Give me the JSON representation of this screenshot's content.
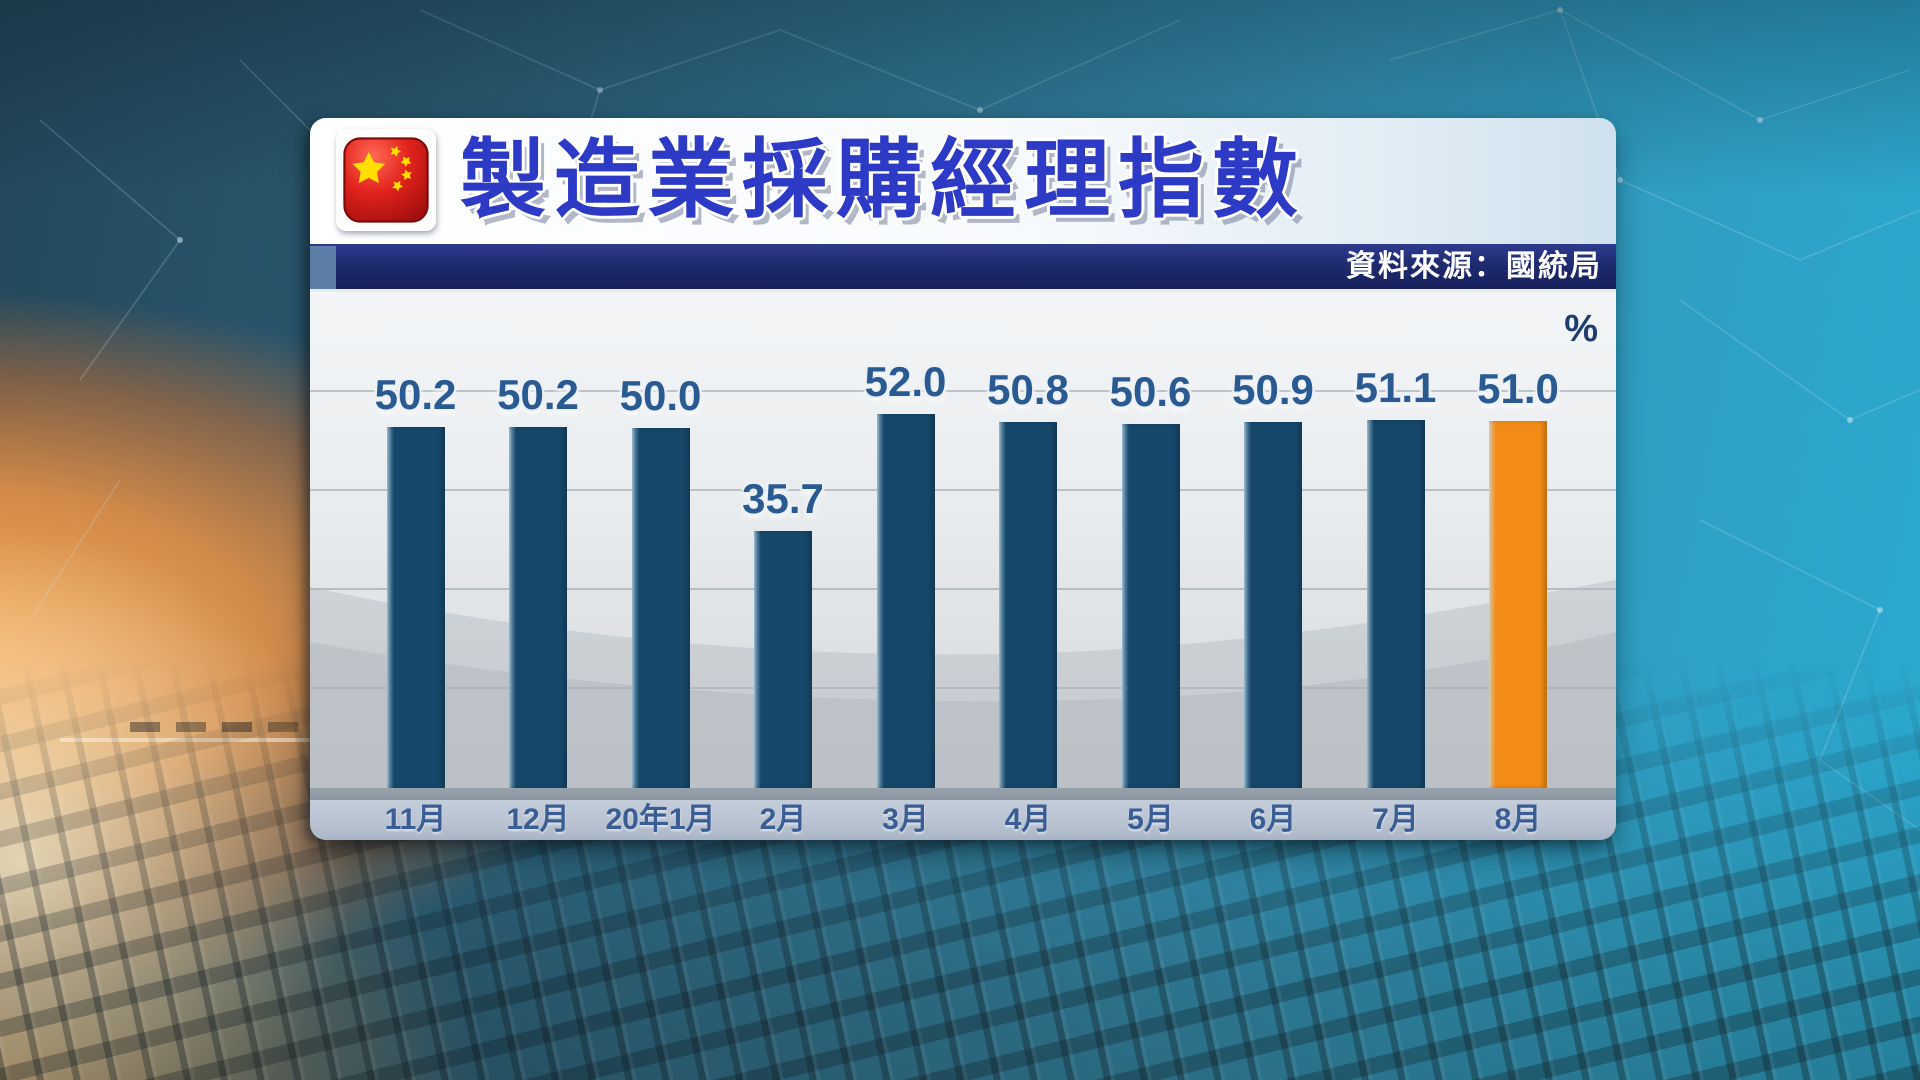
{
  "header": {
    "title": "製造業採購經理指數"
  },
  "source_bar": {
    "label": "資料來源：國統局"
  },
  "axis": {
    "unit_label": "%"
  },
  "colors": {
    "bar": "#16486c",
    "highlight": "#f28c16",
    "value_label": "#2a5a92",
    "x_label": "#3a5d94",
    "title_blue": "#2c3ac5",
    "source_strip": "#1d2a6e"
  },
  "chart_data": {
    "type": "bar",
    "title": "製造業採購經理指數",
    "source": "資料來源：國統局",
    "ylabel": "%",
    "categories": [
      "11月",
      "12月",
      "20年1月",
      "2月",
      "3月",
      "4月",
      "5月",
      "6月",
      "7月",
      "8月"
    ],
    "values": [
      50.2,
      50.2,
      50.0,
      35.7,
      52.0,
      50.8,
      50.6,
      50.9,
      51.1,
      51.0
    ],
    "highlight_index": 9,
    "ylim": [
      0,
      55
    ],
    "grid": true,
    "legend": "none",
    "value_labels_shown": true
  }
}
